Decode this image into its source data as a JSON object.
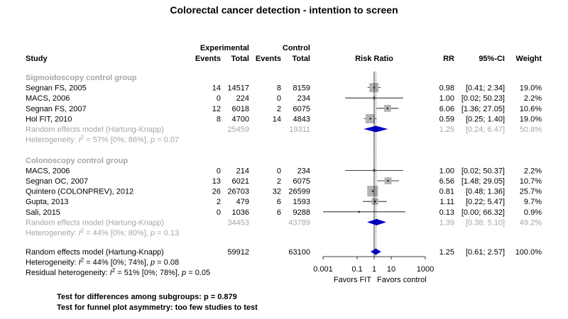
{
  "title": "Colorectal cancer detection - intention to screen",
  "headers": {
    "experimental": "Experimental",
    "control": "Control",
    "study": "Study",
    "events": "Events",
    "total": "Total",
    "risk_ratio": "Risk Ratio",
    "rr": "RR",
    "ci": "95%-CI",
    "weight": "Weight"
  },
  "chart_data": {
    "type": "forest",
    "x_scale": "log",
    "xlim": [
      0.001,
      1000
    ],
    "x_ticks": [
      "0.001",
      "0.1",
      "1",
      "10",
      "1000"
    ],
    "x_tick_values": [
      0.001,
      0.1,
      1,
      10,
      1000
    ],
    "favors_left": "Favors FIT",
    "favors_right": "Favors control",
    "reference_value": 1,
    "overall_estimate": 1.25,
    "colors": {
      "study_box": "#b3b3b3",
      "summary_diamond": "#0000cc",
      "subgroup_text": "#a6a6a6"
    },
    "groups": [
      {
        "label": "Sigmoidoscopy control group",
        "studies": [
          {
            "study": "Segnan FS, 2005",
            "e_events": "14",
            "e_total": "14517",
            "c_events": "8",
            "c_total": "8159",
            "rr": 0.98,
            "lower": 0.41,
            "upper": 2.34,
            "rr_text": "0.98",
            "ci_text": "[0.41;  2.34]",
            "weight": 19.0,
            "weight_text": "19.0%"
          },
          {
            "study": "MACS, 2006",
            "e_events": "0",
            "e_total": "224",
            "c_events": "0",
            "c_total": "234",
            "rr": 1.0,
            "lower": 0.02,
            "upper": 50.23,
            "rr_text": "1.00",
            "ci_text": "[0.02; 50.23]",
            "weight": 2.2,
            "weight_text": "2.2%"
          },
          {
            "study": "Segnan FS, 2007",
            "e_events": "12",
            "e_total": "6018",
            "c_events": "2",
            "c_total": "6075",
            "rr": 6.06,
            "lower": 1.36,
            "upper": 27.05,
            "rr_text": "6.06",
            "ci_text": "[1.36; 27.05]",
            "weight": 10.6,
            "weight_text": "10.6%"
          },
          {
            "study": "Hol FIT, 2010",
            "e_events": "8",
            "e_total": "4700",
            "c_events": "14",
            "c_total": "4843",
            "rr": 0.59,
            "lower": 0.25,
            "upper": 1.4,
            "rr_text": "0.59",
            "ci_text": "[0.25;  1.40]",
            "weight": 19.0,
            "weight_text": "19.0%"
          }
        ],
        "summary": {
          "label": "Random effects model (Hartung-Knapp)",
          "e_total": "25459",
          "c_total": "19311",
          "rr": 1.25,
          "lower": 0.24,
          "upper": 6.47,
          "rr_text": "1.25",
          "ci_text": "[0.24;  6.47]",
          "weight_text": "50.8%"
        },
        "heterogeneity": {
          "prefix": "Heterogeneity: ",
          "i2": "I",
          "sup": "2",
          "rest": " = 57% [0%; 86%], ",
          "p": "p",
          "p_value": " = 0.07"
        }
      },
      {
        "label": "Colonoscopy control group",
        "studies": [
          {
            "study": "MACS, 2006",
            "e_events": "0",
            "e_total": "214",
            "c_events": "0",
            "c_total": "234",
            "rr": 1.0,
            "lower": 0.02,
            "upper": 50.37,
            "rr_text": "1.00",
            "ci_text": "[0.02; 50.37]",
            "weight": 2.2,
            "weight_text": "2.2%"
          },
          {
            "study": "Segnan OC, 2007",
            "e_events": "13",
            "e_total": "6021",
            "c_events": "2",
            "c_total": "6075",
            "rr": 6.56,
            "lower": 1.48,
            "upper": 29.05,
            "rr_text": "6.56",
            "ci_text": "[1.48; 29.05]",
            "weight": 10.7,
            "weight_text": "10.7%"
          },
          {
            "study": "Quintero (COLONPREV), 2012",
            "e_events": "26",
            "e_total": "26703",
            "c_events": "32",
            "c_total": "26599",
            "rr": 0.81,
            "lower": 0.48,
            "upper": 1.36,
            "rr_text": "0.81",
            "ci_text": "[0.48;  1.36]",
            "weight": 25.7,
            "weight_text": "25.7%"
          },
          {
            "study": "Gupta, 2013",
            "e_events": "2",
            "e_total": "479",
            "c_events": "6",
            "c_total": "1593",
            "rr": 1.11,
            "lower": 0.22,
            "upper": 5.47,
            "rr_text": "1.11",
            "ci_text": "[0.22;  5.47]",
            "weight": 9.7,
            "weight_text": "9.7%"
          },
          {
            "study": "Sali, 2015",
            "e_events": "0",
            "e_total": "1036",
            "c_events": "6",
            "c_total": "9288",
            "rr": 0.13,
            "lower": 0.0,
            "upper": 66.32,
            "rr_text": "0.13",
            "ci_text": "[0.00; 66.32]",
            "weight": 0.9,
            "weight_text": "0.9%"
          }
        ],
        "summary": {
          "label": "Random effects model (Hartung-Knapp)",
          "e_total": "34453",
          "c_total": "43789",
          "rr": 1.39,
          "lower": 0.38,
          "upper": 5.1,
          "rr_text": "1.39",
          "ci_text": "[0.38;  5.10]",
          "weight_text": "49.2%"
        },
        "heterogeneity": {
          "prefix": "Heterogeneity: ",
          "i2": "I",
          "sup": "2",
          "rest": " = 44% [0%; 80%], ",
          "p": "p",
          "p_value": " = 0.13"
        }
      }
    ],
    "overall": {
      "label": "Random effects model (Hartung-Knapp)",
      "e_total": "59912",
      "c_total": "63100",
      "rr": 1.25,
      "lower": 0.61,
      "upper": 2.57,
      "rr_text": "1.25",
      "ci_text": "[0.61;  2.57]",
      "weight_text": "100.0%",
      "heterogeneity": {
        "prefix": "Heterogeneity: ",
        "i2": "I",
        "sup": "2",
        "rest": " = 44% [0%; 74%], ",
        "p": "p",
        "p_value": " = 0.08"
      },
      "residual_heterogeneity": {
        "prefix": "Residual heterogeneity: ",
        "i2": "I",
        "sup": "2",
        "rest": " = 51% [0%; 78%], ",
        "p": "p",
        "p_value": " = 0.05"
      }
    }
  },
  "footer": {
    "subgroup_test": "Test for differences among subgroups: p = 0.879",
    "funnel_test": "Test for funnel plot asymmetry: too few studies to test"
  }
}
